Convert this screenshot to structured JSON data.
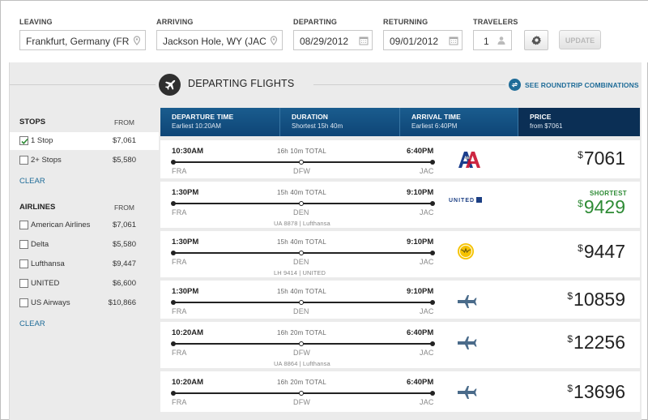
{
  "search": {
    "leaving_label": "LEAVING",
    "leaving_value": "Frankfurt, Germany (FR",
    "arriving_label": "ARRIVING",
    "arriving_value": "Jackson Hole, WY (JAC",
    "departing_label": "DEPARTING",
    "departing_value": "08/29/2012",
    "returning_label": "RETURNING",
    "returning_value": "09/01/2012",
    "travelers_label": "TRAVELERS",
    "travelers_value": "1",
    "update_label": "UPDATE",
    "location_icon": "map-pin-icon",
    "calendar_icon": "calendar-icon",
    "traveler_icon": "person-icon",
    "settings_icon": "gear-icon"
  },
  "header": {
    "title": "DEPARTING FLIGHTS",
    "roundtrip_link": "SEE ROUNDTRIP COMBINATIONS"
  },
  "filters": {
    "stops": {
      "title": "STOPS",
      "from_label": "FROM",
      "items": [
        {
          "label": "1 Stop",
          "price": "$7,061",
          "checked": true
        },
        {
          "label": "2+ Stops",
          "price": "$5,580",
          "checked": false
        }
      ],
      "clear_label": "CLEAR"
    },
    "airlines": {
      "title": "AIRLINES",
      "from_label": "FROM",
      "items": [
        {
          "label": "American Airlines",
          "price": "$7,061",
          "checked": false
        },
        {
          "label": "Delta",
          "price": "$5,580",
          "checked": false
        },
        {
          "label": "Lufthansa",
          "price": "$9,447",
          "checked": false
        },
        {
          "label": "UNITED",
          "price": "$6,600",
          "checked": false
        },
        {
          "label": "US Airways",
          "price": "$10,866",
          "checked": false
        }
      ],
      "clear_label": "CLEAR"
    }
  },
  "columns": [
    {
      "title": "DEPARTURE TIME",
      "sub": "Earliest 10:20AM"
    },
    {
      "title": "DURATION",
      "sub": "Shortest 15h 40m"
    },
    {
      "title": "ARRIVAL TIME",
      "sub": "Earliest 6:40PM"
    },
    {
      "title": "PRICE",
      "sub": "from $7061"
    }
  ],
  "results": [
    {
      "depart": "10:30AM",
      "arrive": "6:40PM",
      "duration": "16h 10m TOTAL",
      "origin": "FRA",
      "via": "DFW",
      "dest": "JAC",
      "codeshare": "",
      "airline": "american-airlines-logo",
      "currency": "$",
      "price": "7061",
      "shortest": ""
    },
    {
      "depart": "1:30PM",
      "arrive": "9:10PM",
      "duration": "15h 40m TOTAL",
      "origin": "FRA",
      "via": "DEN",
      "dest": "JAC",
      "codeshare": "UA 8878 | Lufthansa",
      "airline": "united-logo",
      "airline_text": "UNITED",
      "currency": "$",
      "price": "9429",
      "shortest": "SHORTEST"
    },
    {
      "depart": "1:30PM",
      "arrive": "9:10PM",
      "duration": "15h 40m TOTAL",
      "origin": "FRA",
      "via": "DEN",
      "dest": "JAC",
      "codeshare": "LH 9414 | UNITED",
      "airline": "lufthansa-logo",
      "currency": "$",
      "price": "9447",
      "shortest": ""
    },
    {
      "depart": "1:30PM",
      "arrive": "9:10PM",
      "duration": "15h 40m TOTAL",
      "origin": "FRA",
      "via": "DEN",
      "dest": "JAC",
      "codeshare": "",
      "airline": "generic-plane-logo",
      "currency": "$",
      "price": "10859",
      "shortest": ""
    },
    {
      "depart": "10:20AM",
      "arrive": "6:40PM",
      "duration": "16h 20m TOTAL",
      "origin": "FRA",
      "via": "DFW",
      "dest": "JAC",
      "codeshare": "UA 8864 | Lufthansa",
      "airline": "generic-plane-logo",
      "currency": "$",
      "price": "12256",
      "shortest": ""
    },
    {
      "depart": "10:20AM",
      "arrive": "6:40PM",
      "duration": "16h 20m TOTAL",
      "origin": "FRA",
      "via": "DFW",
      "dest": "JAC",
      "codeshare": "",
      "airline": "generic-plane-logo",
      "currency": "$",
      "price": "13696",
      "shortest": ""
    }
  ],
  "colors": {
    "header_blue": "#0e4576",
    "price_col": "#0b2f55",
    "link_blue": "#1f6c98",
    "green": "#2e8b35"
  }
}
